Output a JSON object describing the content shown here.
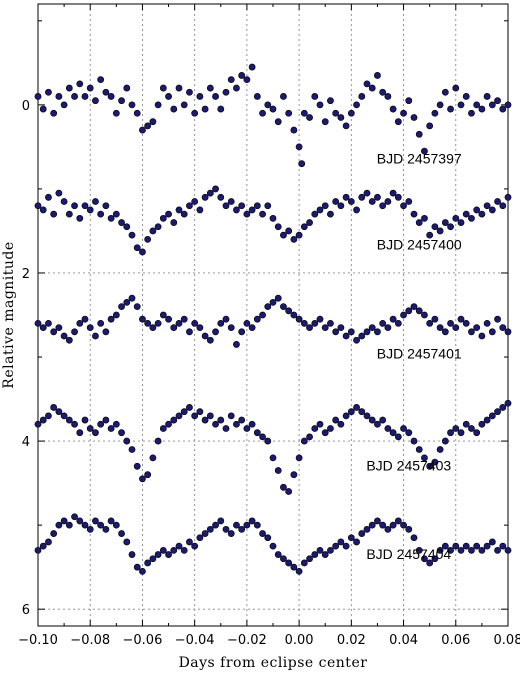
{
  "chart_data": {
    "type": "scatter",
    "xlabel": "Days from eclipse center",
    "ylabel": "Relative magnitude",
    "xlim": [
      -0.1,
      0.08
    ],
    "ylim": [
      6.2,
      -1.2
    ],
    "y_inverted": true,
    "grid": true,
    "grid_style": "dotted",
    "marker_color": "#1a1a6e",
    "x_ticks": [
      -0.1,
      -0.08,
      -0.06,
      -0.04,
      -0.02,
      0.0,
      0.02,
      0.04,
      0.06,
      0.08
    ],
    "x_tick_labels": [
      "−0.10",
      "−0.08",
      "−0.06",
      "−0.04",
      "−0.02",
      "0.00",
      "0.02",
      "0.04",
      "0.06",
      "0.08"
    ],
    "y_ticks": [
      0,
      2,
      4,
      6
    ],
    "y_tick_labels": [
      "0",
      "2",
      "4",
      "6"
    ],
    "series": [
      {
        "name": "BJD 2457397",
        "label_pos": [
          0.046,
          0.7
        ],
        "x": [
          -0.1,
          -0.098,
          -0.096,
          -0.094,
          -0.092,
          -0.09,
          -0.088,
          -0.086,
          -0.084,
          -0.082,
          -0.08,
          -0.078,
          -0.076,
          -0.074,
          -0.072,
          -0.07,
          -0.068,
          -0.066,
          -0.064,
          -0.062,
          -0.06,
          -0.058,
          -0.056,
          -0.054,
          -0.052,
          -0.05,
          -0.048,
          -0.046,
          -0.044,
          -0.042,
          -0.04,
          -0.038,
          -0.036,
          -0.034,
          -0.032,
          -0.03,
          -0.028,
          -0.026,
          -0.024,
          -0.022,
          -0.02,
          -0.018,
          -0.016,
          -0.014,
          -0.012,
          -0.01,
          -0.008,
          -0.006,
          -0.004,
          -0.002,
          0.0,
          0.001,
          0.002,
          0.004,
          0.006,
          0.008,
          0.01,
          0.012,
          0.014,
          0.016,
          0.018,
          0.02,
          0.022,
          0.024,
          0.026,
          0.028,
          0.03,
          0.032,
          0.034,
          0.036,
          0.038,
          0.04,
          0.042,
          0.044,
          0.046,
          0.048,
          0.05,
          0.052,
          0.054,
          0.056,
          0.058,
          0.06,
          0.062,
          0.064,
          0.066,
          0.068,
          0.07,
          0.072,
          0.074,
          0.076,
          0.078,
          0.08
        ],
        "y": [
          -0.1,
          0.05,
          -0.15,
          0.1,
          -0.1,
          0.0,
          -0.2,
          -0.1,
          -0.25,
          -0.1,
          -0.2,
          -0.05,
          -0.3,
          -0.15,
          -0.1,
          0.1,
          -0.05,
          -0.2,
          0.0,
          0.1,
          0.3,
          0.25,
          0.2,
          0.0,
          -0.2,
          -0.1,
          0.05,
          -0.2,
          0.0,
          -0.15,
          0.1,
          -0.1,
          0.05,
          -0.2,
          -0.1,
          0.05,
          -0.15,
          -0.3,
          -0.2,
          -0.35,
          -0.3,
          -0.45,
          -0.1,
          0.1,
          0.0,
          0.05,
          0.2,
          -0.1,
          0.1,
          0.3,
          0.5,
          0.7,
          0.1,
          0.15,
          -0.1,
          0.0,
          0.2,
          -0.05,
          0.1,
          0.15,
          0.25,
          0.1,
          0.0,
          -0.1,
          -0.25,
          -0.2,
          -0.35,
          -0.15,
          -0.1,
          0.05,
          0.2,
          0.1,
          -0.05,
          0.15,
          0.35,
          0.55,
          0.25,
          0.1,
          0.0,
          -0.15,
          0.05,
          -0.2,
          0.0,
          -0.1,
          0.1,
          0.0,
          0.05,
          -0.1,
          0.0,
          -0.05,
          0.05,
          0.0
        ]
      },
      {
        "name": "BJD 2457400",
        "label_pos": [
          0.046,
          1.72
        ],
        "x": [
          -0.1,
          -0.098,
          -0.096,
          -0.094,
          -0.092,
          -0.09,
          -0.088,
          -0.086,
          -0.084,
          -0.082,
          -0.08,
          -0.078,
          -0.076,
          -0.074,
          -0.072,
          -0.07,
          -0.068,
          -0.066,
          -0.064,
          -0.062,
          -0.06,
          -0.058,
          -0.056,
          -0.054,
          -0.052,
          -0.05,
          -0.048,
          -0.046,
          -0.044,
          -0.042,
          -0.04,
          -0.038,
          -0.036,
          -0.034,
          -0.032,
          -0.03,
          -0.028,
          -0.026,
          -0.024,
          -0.022,
          -0.02,
          -0.018,
          -0.016,
          -0.014,
          -0.012,
          -0.01,
          -0.008,
          -0.006,
          -0.004,
          -0.002,
          0.0,
          0.002,
          0.004,
          0.006,
          0.008,
          0.01,
          0.012,
          0.014,
          0.016,
          0.018,
          0.02,
          0.022,
          0.024,
          0.026,
          0.028,
          0.03,
          0.032,
          0.034,
          0.036,
          0.038,
          0.04,
          0.042,
          0.044,
          0.046,
          0.048,
          0.05,
          0.052,
          0.054,
          0.056,
          0.058,
          0.06,
          0.062,
          0.064,
          0.066,
          0.068,
          0.07,
          0.072,
          0.074,
          0.076,
          0.078,
          0.08
        ],
        "y": [
          1.2,
          1.25,
          1.1,
          1.3,
          1.05,
          1.15,
          1.3,
          1.2,
          1.35,
          1.2,
          1.25,
          1.15,
          1.3,
          1.2,
          1.35,
          1.3,
          1.4,
          1.45,
          1.55,
          1.7,
          1.75,
          1.6,
          1.5,
          1.45,
          1.35,
          1.3,
          1.4,
          1.25,
          1.3,
          1.2,
          1.15,
          1.25,
          1.1,
          1.05,
          1.0,
          1.1,
          1.2,
          1.15,
          1.25,
          1.2,
          1.3,
          1.25,
          1.2,
          1.3,
          1.2,
          1.35,
          1.45,
          1.55,
          1.5,
          1.6,
          1.55,
          1.45,
          1.4,
          1.3,
          1.25,
          1.2,
          1.3,
          1.15,
          1.2,
          1.1,
          1.15,
          1.25,
          1.1,
          1.05,
          1.15,
          1.1,
          1.2,
          1.15,
          1.05,
          1.1,
          1.2,
          1.15,
          1.3,
          1.4,
          1.35,
          1.55,
          1.45,
          1.5,
          1.4,
          1.45,
          1.35,
          1.4,
          1.3,
          1.35,
          1.25,
          1.3,
          1.2,
          1.25,
          1.15,
          1.2,
          1.1
        ]
      },
      {
        "name": "BJD 2457401",
        "label_pos": [
          0.046,
          3.02
        ],
        "x": [
          -0.1,
          -0.098,
          -0.096,
          -0.094,
          -0.092,
          -0.09,
          -0.088,
          -0.086,
          -0.084,
          -0.082,
          -0.08,
          -0.078,
          -0.076,
          -0.074,
          -0.072,
          -0.07,
          -0.068,
          -0.066,
          -0.064,
          -0.062,
          -0.06,
          -0.058,
          -0.056,
          -0.054,
          -0.052,
          -0.05,
          -0.048,
          -0.046,
          -0.044,
          -0.042,
          -0.04,
          -0.038,
          -0.036,
          -0.034,
          -0.032,
          -0.03,
          -0.028,
          -0.026,
          -0.024,
          -0.022,
          -0.02,
          -0.018,
          -0.016,
          -0.014,
          -0.012,
          -0.01,
          -0.008,
          -0.006,
          -0.004,
          -0.002,
          0.0,
          0.002,
          0.004,
          0.006,
          0.008,
          0.01,
          0.012,
          0.014,
          0.016,
          0.018,
          0.02,
          0.022,
          0.024,
          0.026,
          0.028,
          0.03,
          0.032,
          0.034,
          0.036,
          0.038,
          0.04,
          0.042,
          0.044,
          0.046,
          0.048,
          0.05,
          0.052,
          0.054,
          0.056,
          0.058,
          0.06,
          0.062,
          0.064,
          0.066,
          0.068,
          0.07,
          0.072,
          0.074,
          0.076,
          0.078,
          0.08
        ],
        "y": [
          2.6,
          2.65,
          2.6,
          2.7,
          2.65,
          2.75,
          2.8,
          2.7,
          2.6,
          2.55,
          2.65,
          2.75,
          2.6,
          2.7,
          2.55,
          2.5,
          2.4,
          2.35,
          2.3,
          2.4,
          2.55,
          2.6,
          2.65,
          2.6,
          2.5,
          2.55,
          2.65,
          2.6,
          2.55,
          2.7,
          2.6,
          2.65,
          2.75,
          2.8,
          2.7,
          2.6,
          2.55,
          2.65,
          2.85,
          2.7,
          2.6,
          2.65,
          2.55,
          2.5,
          2.4,
          2.35,
          2.3,
          2.4,
          2.45,
          2.5,
          2.55,
          2.6,
          2.65,
          2.6,
          2.55,
          2.65,
          2.6,
          2.7,
          2.65,
          2.75,
          2.7,
          2.8,
          2.75,
          2.7,
          2.65,
          2.7,
          2.6,
          2.65,
          2.55,
          2.6,
          2.5,
          2.45,
          2.4,
          2.45,
          2.5,
          2.6,
          2.55,
          2.65,
          2.7,
          2.6,
          2.65,
          2.55,
          2.6,
          2.7,
          2.65,
          2.75,
          2.6,
          2.7,
          2.55,
          2.65,
          2.7
        ]
      },
      {
        "name": "BJD 2457403",
        "label_pos": [
          0.042,
          4.35
        ],
        "x": [
          -0.1,
          -0.098,
          -0.096,
          -0.094,
          -0.092,
          -0.09,
          -0.088,
          -0.086,
          -0.084,
          -0.082,
          -0.08,
          -0.078,
          -0.076,
          -0.074,
          -0.072,
          -0.07,
          -0.068,
          -0.066,
          -0.064,
          -0.062,
          -0.06,
          -0.058,
          -0.056,
          -0.054,
          -0.052,
          -0.05,
          -0.048,
          -0.046,
          -0.044,
          -0.042,
          -0.04,
          -0.038,
          -0.036,
          -0.034,
          -0.032,
          -0.03,
          -0.028,
          -0.026,
          -0.024,
          -0.022,
          -0.02,
          -0.018,
          -0.016,
          -0.014,
          -0.012,
          -0.01,
          -0.008,
          -0.006,
          -0.004,
          -0.002,
          0.0,
          0.002,
          0.004,
          0.006,
          0.008,
          0.01,
          0.012,
          0.014,
          0.016,
          0.018,
          0.02,
          0.022,
          0.024,
          0.026,
          0.028,
          0.03,
          0.032,
          0.034,
          0.036,
          0.038,
          0.04,
          0.042,
          0.044,
          0.046,
          0.048,
          0.05,
          0.052,
          0.054,
          0.056,
          0.058,
          0.06,
          0.062,
          0.064,
          0.066,
          0.068,
          0.07,
          0.072,
          0.074,
          0.076,
          0.078,
          0.08
        ],
        "y": [
          3.8,
          3.75,
          3.7,
          3.6,
          3.65,
          3.7,
          3.75,
          3.8,
          3.9,
          3.75,
          3.85,
          3.9,
          3.8,
          3.75,
          3.85,
          3.8,
          3.9,
          4.0,
          4.1,
          4.3,
          4.45,
          4.4,
          4.2,
          4.0,
          3.85,
          3.8,
          3.75,
          3.7,
          3.65,
          3.6,
          3.7,
          3.65,
          3.75,
          3.7,
          3.8,
          3.75,
          3.85,
          3.7,
          3.8,
          3.75,
          3.85,
          3.8,
          3.9,
          3.95,
          4.0,
          4.2,
          4.35,
          4.55,
          4.6,
          4.4,
          4.2,
          4.0,
          3.95,
          3.85,
          3.8,
          3.9,
          3.85,
          3.75,
          3.8,
          3.7,
          3.65,
          3.6,
          3.65,
          3.7,
          3.75,
          3.8,
          3.75,
          3.85,
          3.9,
          3.95,
          3.85,
          3.9,
          4.0,
          4.1,
          4.2,
          4.3,
          4.25,
          4.1,
          4.0,
          3.9,
          3.85,
          3.9,
          3.8,
          3.85,
          3.9,
          3.8,
          3.75,
          3.7,
          3.65,
          3.6,
          3.55
        ]
      },
      {
        "name": "BJD 2457404",
        "label_pos": [
          0.042,
          5.4
        ],
        "x": [
          -0.1,
          -0.098,
          -0.096,
          -0.094,
          -0.092,
          -0.09,
          -0.088,
          -0.086,
          -0.084,
          -0.082,
          -0.08,
          -0.078,
          -0.076,
          -0.074,
          -0.072,
          -0.07,
          -0.068,
          -0.066,
          -0.064,
          -0.062,
          -0.06,
          -0.058,
          -0.056,
          -0.054,
          -0.052,
          -0.05,
          -0.048,
          -0.046,
          -0.044,
          -0.042,
          -0.04,
          -0.038,
          -0.036,
          -0.034,
          -0.032,
          -0.03,
          -0.028,
          -0.026,
          -0.024,
          -0.022,
          -0.02,
          -0.018,
          -0.016,
          -0.014,
          -0.012,
          -0.01,
          -0.008,
          -0.006,
          -0.004,
          -0.002,
          0.0,
          0.002,
          0.004,
          0.006,
          0.008,
          0.01,
          0.012,
          0.014,
          0.016,
          0.018,
          0.02,
          0.022,
          0.024,
          0.026,
          0.028,
          0.03,
          0.032,
          0.034,
          0.036,
          0.038,
          0.04,
          0.042,
          0.044,
          0.046,
          0.048,
          0.05,
          0.052,
          0.054,
          0.056,
          0.058,
          0.06,
          0.062,
          0.064,
          0.066,
          0.068,
          0.07,
          0.072,
          0.074,
          0.076,
          0.078,
          0.08
        ],
        "y": [
          5.3,
          5.25,
          5.2,
          5.1,
          5.0,
          4.95,
          5.0,
          4.9,
          4.95,
          5.0,
          5.05,
          4.95,
          5.0,
          5.05,
          4.95,
          5.0,
          5.1,
          5.2,
          5.35,
          5.5,
          5.55,
          5.45,
          5.4,
          5.35,
          5.3,
          5.35,
          5.3,
          5.25,
          5.3,
          5.2,
          5.25,
          5.15,
          5.1,
          5.05,
          5.0,
          4.95,
          5.05,
          5.1,
          5.0,
          5.05,
          5.0,
          4.95,
          5.0,
          5.1,
          5.15,
          5.25,
          5.35,
          5.4,
          5.45,
          5.5,
          5.55,
          5.45,
          5.4,
          5.35,
          5.3,
          5.35,
          5.3,
          5.25,
          5.2,
          5.25,
          5.15,
          5.2,
          5.1,
          5.05,
          5.0,
          4.95,
          5.0,
          5.05,
          5.0,
          4.95,
          5.0,
          5.05,
          5.15,
          5.3,
          5.4,
          5.45,
          5.4,
          5.3,
          5.25,
          5.3,
          5.25,
          5.3,
          5.25,
          5.3,
          5.25,
          5.3,
          5.25,
          5.2,
          5.3,
          5.25,
          5.3
        ]
      }
    ]
  }
}
